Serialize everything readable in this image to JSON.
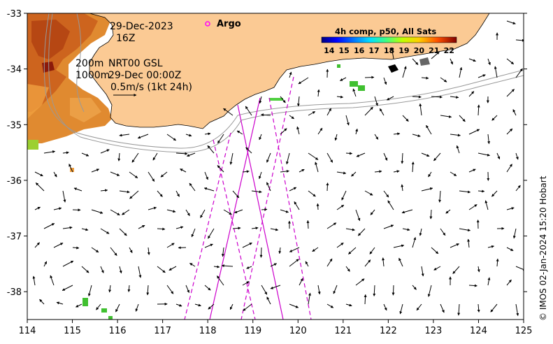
{
  "map": {
    "date": "29-Dec-2023",
    "time": "16Z",
    "contour_line1": "200m",
    "contour_line2": "1000m",
    "product": "NRT00 GSL",
    "product_time": "29-Dec 00:00Z",
    "scale_text": "0.5m/s (1kt 24h)",
    "argo_label": "Argo",
    "credit": "© IMOS 02-Jan-2024 15:20 Hobart",
    "land_color": "#fbca94",
    "track_color": "#cc00cc",
    "argo_color": "#ff00ff",
    "lon_range": [
      114,
      125
    ],
    "lat_range": [
      -38.5,
      -33
    ]
  },
  "axes": {
    "x_ticks": [
      "114",
      "115",
      "116",
      "117",
      "118",
      "119",
      "120",
      "121",
      "122",
      "123",
      "124",
      "125"
    ],
    "y_ticks": [
      "-33",
      "-34",
      "-35",
      "-36",
      "-37",
      "-38"
    ]
  },
  "colorbar": {
    "title": "4h comp, p50, All Sats",
    "ticks": [
      "14",
      "15",
      "16",
      "17",
      "18",
      "19",
      "20",
      "21",
      "22"
    ],
    "range": [
      13.5,
      22.5
    ]
  }
}
